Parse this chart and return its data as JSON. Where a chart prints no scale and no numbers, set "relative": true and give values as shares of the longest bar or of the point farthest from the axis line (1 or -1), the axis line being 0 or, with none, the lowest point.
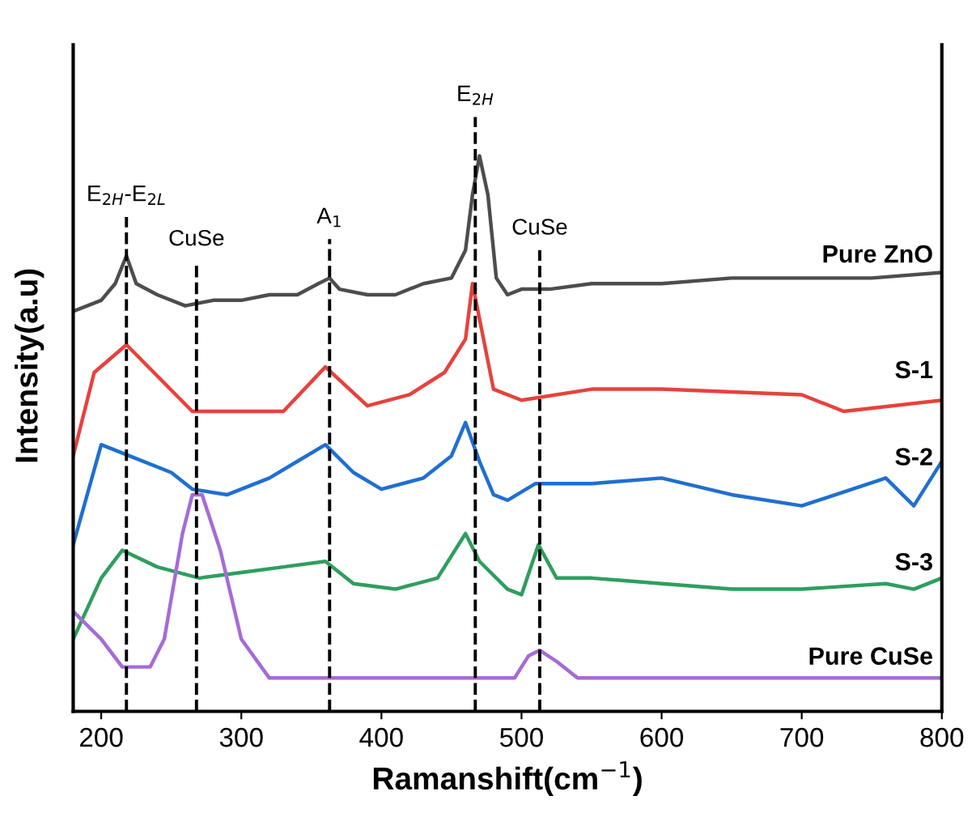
{
  "chart_data": {
    "type": "line",
    "relative": true,
    "xlabel": "Ramanshift(cm$^{−1}$)",
    "ylabel": "Intensity(a.u)",
    "xlim": [
      180,
      800
    ],
    "xticks": [
      200,
      300,
      400,
      500,
      600,
      700,
      800
    ],
    "grid": false,
    "legend": false,
    "marker": "none",
    "line_style": "solid",
    "series": [
      {
        "name": "Pure ZnO",
        "color": "#4d4d4d",
        "x": [
          180,
          200,
          210,
          218,
          225,
          240,
          260,
          280,
          300,
          320,
          340,
          355,
          363,
          370,
          390,
          410,
          430,
          450,
          460,
          465,
          470,
          476,
          482,
          490,
          500,
          520,
          550,
          600,
          650,
          700,
          750,
          800
        ],
        "values": [
          0.72,
          0.74,
          0.77,
          0.82,
          0.77,
          0.75,
          0.73,
          0.74,
          0.74,
          0.75,
          0.75,
          0.77,
          0.78,
          0.76,
          0.75,
          0.75,
          0.77,
          0.78,
          0.83,
          0.93,
          1.0,
          0.93,
          0.78,
          0.75,
          0.76,
          0.76,
          0.77,
          0.77,
          0.78,
          0.78,
          0.78,
          0.79
        ]
      },
      {
        "name": "S-1",
        "color": "#e8413c",
        "x": [
          180,
          195,
          218,
          265,
          300,
          330,
          360,
          390,
          420,
          445,
          460,
          465,
          480,
          500,
          550,
          600,
          700,
          730,
          800
        ],
        "values": [
          0.46,
          0.61,
          0.66,
          0.54,
          0.54,
          0.54,
          0.62,
          0.55,
          0.57,
          0.61,
          0.67,
          0.77,
          0.58,
          0.56,
          0.58,
          0.58,
          0.57,
          0.54,
          0.56
        ]
      },
      {
        "name": "S-2",
        "color": "#1f6fd1",
        "x": [
          180,
          200,
          220,
          250,
          265,
          290,
          320,
          340,
          360,
          380,
          400,
          430,
          450,
          460,
          470,
          480,
          490,
          510,
          550,
          600,
          650,
          700,
          760,
          780,
          800
        ],
        "values": [
          0.3,
          0.48,
          0.46,
          0.43,
          0.4,
          0.39,
          0.42,
          0.45,
          0.48,
          0.43,
          0.4,
          0.42,
          0.46,
          0.52,
          0.45,
          0.39,
          0.38,
          0.41,
          0.41,
          0.42,
          0.39,
          0.37,
          0.42,
          0.37,
          0.45
        ]
      },
      {
        "name": "S-3",
        "color": "#2e9e5e",
        "x": [
          180,
          200,
          215,
          240,
          270,
          300,
          330,
          360,
          380,
          410,
          440,
          460,
          470,
          490,
          500,
          512,
          525,
          550,
          600,
          650,
          700,
          760,
          780,
          800
        ],
        "values": [
          0.13,
          0.24,
          0.29,
          0.26,
          0.24,
          0.25,
          0.26,
          0.27,
          0.23,
          0.22,
          0.24,
          0.32,
          0.27,
          0.22,
          0.21,
          0.3,
          0.24,
          0.24,
          0.23,
          0.22,
          0.22,
          0.23,
          0.22,
          0.24
        ]
      },
      {
        "name": "Pure CuSe",
        "color": "#a66bd6",
        "x": [
          180,
          200,
          215,
          235,
          245,
          258,
          265,
          272,
          285,
          300,
          320,
          400,
          480,
          495,
          505,
          513,
          525,
          540,
          600,
          800
        ],
        "values": [
          0.18,
          0.13,
          0.08,
          0.08,
          0.13,
          0.32,
          0.39,
          0.39,
          0.29,
          0.13,
          0.06,
          0.06,
          0.06,
          0.06,
          0.1,
          0.11,
          0.09,
          0.06,
          0.06,
          0.06
        ]
      }
    ],
    "ref_lines": [
      {
        "axis": "x",
        "value": 218,
        "label": "E$_{2H}$-E$_{2L}$",
        "color": "#000000",
        "line_style": "dashed"
      },
      {
        "axis": "x",
        "value": 268,
        "label": "CuSe",
        "color": "#000000",
        "line_style": "dashed"
      },
      {
        "axis": "x",
        "value": 363,
        "label": "A$_{1}$",
        "color": "#000000",
        "line_style": "dashed"
      },
      {
        "axis": "x",
        "value": 467,
        "label": "E$_{2H}$",
        "color": "#000000",
        "line_style": "dashed"
      },
      {
        "axis": "x",
        "value": 513,
        "label": "CuSe",
        "color": "#000000",
        "line_style": "dashed"
      }
    ]
  }
}
